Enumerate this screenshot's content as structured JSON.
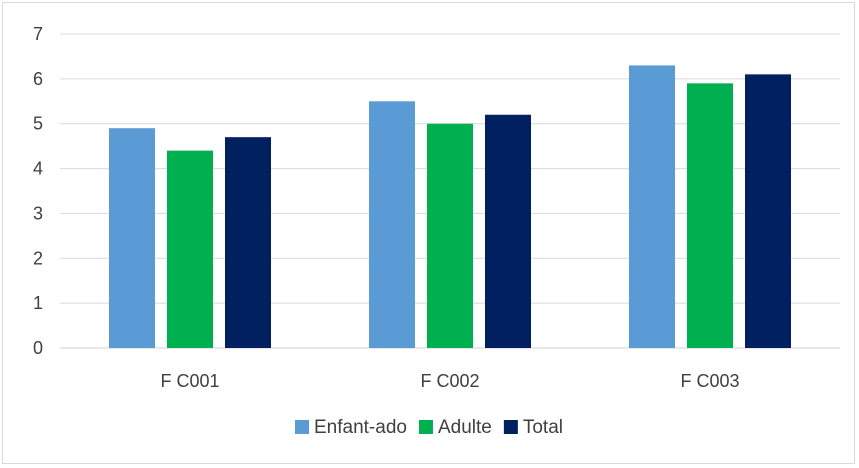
{
  "chart_data": {
    "type": "bar",
    "title": "",
    "xlabel": "",
    "ylabel": "",
    "ylim": [
      0,
      7
    ],
    "yticks": [
      0,
      1,
      2,
      3,
      4,
      5,
      6,
      7
    ],
    "grid": true,
    "legend_position": "bottom",
    "categories": [
      "F C001",
      "F C002",
      "F C003"
    ],
    "series": [
      {
        "name": "Enfant-ado",
        "color": "#5b9bd5",
        "values": [
          4.9,
          5.5,
          6.3
        ]
      },
      {
        "name": "Adulte",
        "color": "#00b050",
        "values": [
          4.4,
          5.0,
          5.9
        ]
      },
      {
        "name": "Total",
        "color": "#002060",
        "values": [
          4.7,
          5.2,
          6.1
        ]
      }
    ]
  }
}
